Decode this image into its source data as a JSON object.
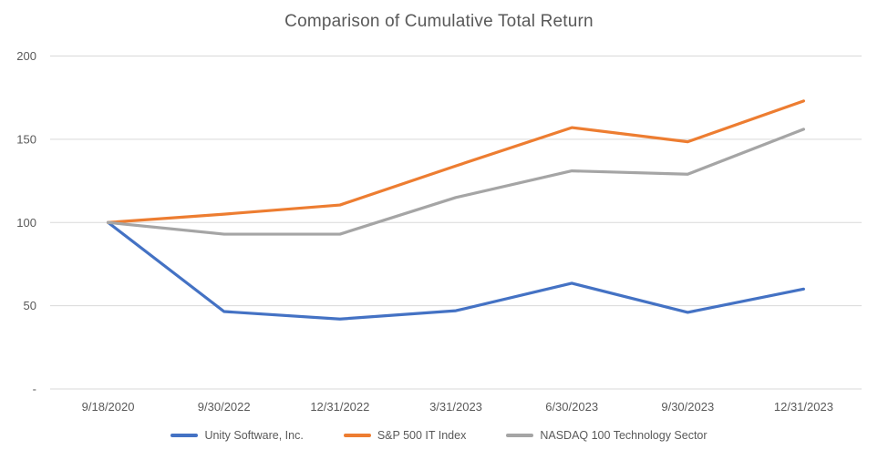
{
  "chart_data": {
    "type": "line",
    "title": "Comparison of Cumulative Total Return",
    "categories": [
      "9/18/2020",
      "9/30/2022",
      "12/31/2022",
      "3/31/2023",
      "6/30/2023",
      "9/30/2023",
      "12/31/2023"
    ],
    "series": [
      {
        "name": "Unity Software, Inc.",
        "color": "#4472C4",
        "values": [
          100,
          46.5,
          42,
          47,
          63.5,
          46,
          60
        ]
      },
      {
        "name": "S&P 500 IT Index",
        "color": "#ED7D31",
        "values": [
          100,
          105,
          110.5,
          134,
          157,
          148.5,
          173
        ]
      },
      {
        "name": "NASDAQ 100 Technology Sector",
        "color": "#A5A5A5",
        "values": [
          100,
          93,
          93,
          115,
          131,
          129,
          156
        ]
      }
    ],
    "y_axis": {
      "min": 0,
      "max": 200,
      "ticks": [
        {
          "label": "200",
          "value": 200
        },
        {
          "label": "150",
          "value": 150
        },
        {
          "label": "100",
          "value": 100
        },
        {
          "label": "50",
          "value": 50
        },
        {
          "label": "-",
          "value": 0
        }
      ]
    },
    "xlabel": "",
    "ylabel": "",
    "grid": true,
    "legend_position": "bottom",
    "colors": {
      "text": "#595959",
      "gridline": "#D9D9D9",
      "background": "#FFFFFF"
    }
  }
}
